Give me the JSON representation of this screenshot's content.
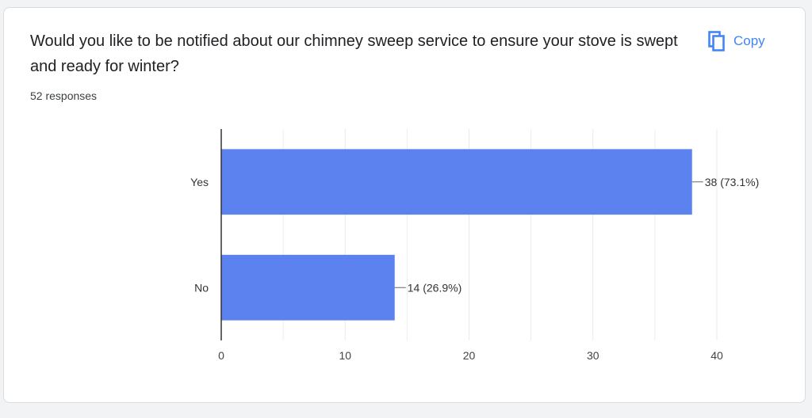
{
  "question": {
    "title": "Would you like to be notified about our chimney sweep service to ensure your stove is swept and ready for winter?",
    "responses": "52 responses"
  },
  "actions": {
    "copy_label": "Copy",
    "copy_icon": "copy-icon"
  },
  "colors": {
    "bar": "#5b82ef",
    "accent": "#4285f4",
    "axis": "#333333",
    "grid": "#e8eaed"
  },
  "chart_data": {
    "type": "bar",
    "orientation": "horizontal",
    "categories": [
      "Yes",
      "No"
    ],
    "values": [
      38,
      14
    ],
    "data_labels": [
      "38 (73.1%)",
      "14 (26.9%)"
    ],
    "xlim": [
      0,
      40
    ],
    "xticks": [
      0,
      10,
      20,
      30,
      40
    ],
    "grid": true,
    "title": "",
    "xlabel": "",
    "ylabel": ""
  }
}
